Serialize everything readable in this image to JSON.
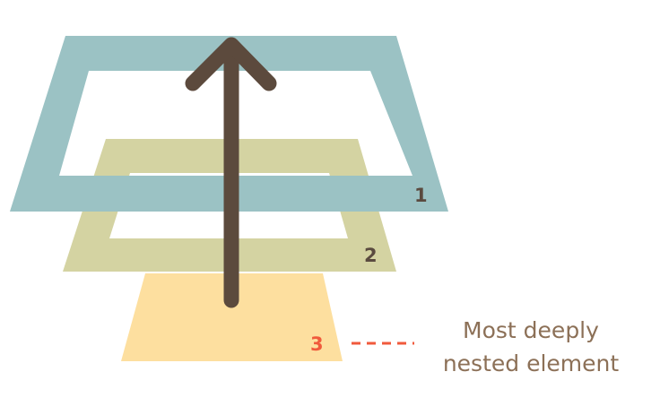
{
  "layers": [
    {
      "label": "1",
      "color": "#9bc2c4",
      "label_color": "#5a4a3f"
    },
    {
      "label": "2",
      "color": "#d4d3a2",
      "label_color": "#5a4a3f"
    },
    {
      "label": "3",
      "color": "#fddf9f",
      "label_color": "#f05a3c"
    }
  ],
  "arrow": {
    "color": "#5c4a3d"
  },
  "annotation": {
    "line1": "Most deeply",
    "line2": "nested element",
    "text_color": "#8c7057",
    "connector_color": "#f05a3c"
  }
}
